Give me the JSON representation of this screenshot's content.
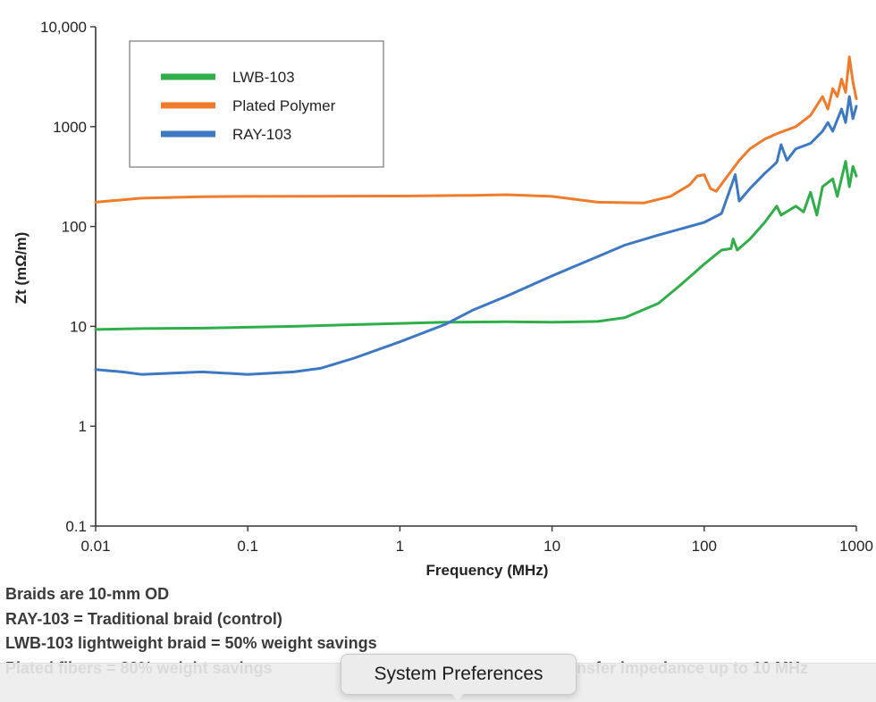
{
  "chart_data": {
    "type": "line",
    "x_scale": "log",
    "y_scale": "log",
    "xlabel": "Frequency (MHz)",
    "ylabel": "Zt (mΩ/m)",
    "xlim": [
      0.01,
      1000
    ],
    "ylim": [
      0.1,
      10000
    ],
    "x_ticks": [
      "0.01",
      "0.1",
      "1",
      "10",
      "100",
      "1000"
    ],
    "y_ticks": [
      "0.1",
      "1",
      "10",
      "100",
      "1000",
      "10,000"
    ],
    "grid": false,
    "legend_position": "top-left",
    "series": [
      {
        "name": "LWB-103",
        "color": "#2fae4a",
        "points": [
          [
            0.01,
            9.3
          ],
          [
            0.02,
            9.5
          ],
          [
            0.05,
            9.6
          ],
          [
            0.1,
            9.8
          ],
          [
            0.2,
            10.0
          ],
          [
            0.5,
            10.4
          ],
          [
            1,
            10.7
          ],
          [
            2,
            11.0
          ],
          [
            5,
            11.1
          ],
          [
            10,
            11.0
          ],
          [
            20,
            11.2
          ],
          [
            30,
            12.2
          ],
          [
            50,
            17
          ],
          [
            70,
            26
          ],
          [
            100,
            42
          ],
          [
            130,
            58
          ],
          [
            150,
            60
          ],
          [
            155,
            75
          ],
          [
            165,
            58
          ],
          [
            200,
            75
          ],
          [
            250,
            110
          ],
          [
            300,
            160
          ],
          [
            320,
            130
          ],
          [
            400,
            160
          ],
          [
            450,
            140
          ],
          [
            500,
            220
          ],
          [
            550,
            130
          ],
          [
            600,
            250
          ],
          [
            700,
            300
          ],
          [
            750,
            200
          ],
          [
            850,
            450
          ],
          [
            900,
            250
          ],
          [
            950,
            400
          ],
          [
            1000,
            320
          ]
        ]
      },
      {
        "name": "Plated Polymer",
        "color": "#f07b2a",
        "points": [
          [
            0.01,
            175
          ],
          [
            0.02,
            192
          ],
          [
            0.05,
            199
          ],
          [
            0.1,
            200
          ],
          [
            0.3,
            201
          ],
          [
            1,
            202
          ],
          [
            3,
            205
          ],
          [
            5,
            208
          ],
          [
            10,
            200
          ],
          [
            20,
            175
          ],
          [
            40,
            172
          ],
          [
            60,
            200
          ],
          [
            80,
            260
          ],
          [
            90,
            320
          ],
          [
            100,
            330
          ],
          [
            110,
            240
          ],
          [
            120,
            225
          ],
          [
            140,
            310
          ],
          [
            170,
            460
          ],
          [
            200,
            600
          ],
          [
            250,
            750
          ],
          [
            300,
            850
          ],
          [
            400,
            1000
          ],
          [
            500,
            1300
          ],
          [
            600,
            2000
          ],
          [
            650,
            1500
          ],
          [
            700,
            2400
          ],
          [
            750,
            2000
          ],
          [
            800,
            3000
          ],
          [
            850,
            2200
          ],
          [
            900,
            5000
          ],
          [
            950,
            2800
          ],
          [
            1000,
            1900
          ]
        ]
      },
      {
        "name": "RAY-103",
        "color": "#3d78c3",
        "points": [
          [
            0.01,
            3.7
          ],
          [
            0.015,
            3.5
          ],
          [
            0.02,
            3.3
          ],
          [
            0.05,
            3.5
          ],
          [
            0.1,
            3.3
          ],
          [
            0.2,
            3.5
          ],
          [
            0.3,
            3.8
          ],
          [
            0.5,
            4.8
          ],
          [
            1,
            7
          ],
          [
            2,
            10.5
          ],
          [
            3,
            14.5
          ],
          [
            5,
            20
          ],
          [
            10,
            32
          ],
          [
            20,
            50
          ],
          [
            30,
            65
          ],
          [
            50,
            82
          ],
          [
            100,
            110
          ],
          [
            130,
            135
          ],
          [
            150,
            250
          ],
          [
            160,
            330
          ],
          [
            170,
            180
          ],
          [
            200,
            240
          ],
          [
            250,
            340
          ],
          [
            300,
            440
          ],
          [
            320,
            660
          ],
          [
            350,
            460
          ],
          [
            400,
            600
          ],
          [
            500,
            680
          ],
          [
            600,
            900
          ],
          [
            650,
            1100
          ],
          [
            700,
            900
          ],
          [
            800,
            1500
          ],
          [
            850,
            1100
          ],
          [
            900,
            2000
          ],
          [
            950,
            1200
          ],
          [
            1000,
            1600
          ]
        ]
      }
    ]
  },
  "notes": [
    "Braids are 10-mm OD",
    "RAY-103 = Traditional braid (control)",
    "LWB-103 lightweight braid = 50% weight savings",
    "Plated fibers = 80% weight savings",
    "nsfer impedance up to 10 MHz"
  ],
  "tooltip": {
    "text": "System Preferences"
  }
}
